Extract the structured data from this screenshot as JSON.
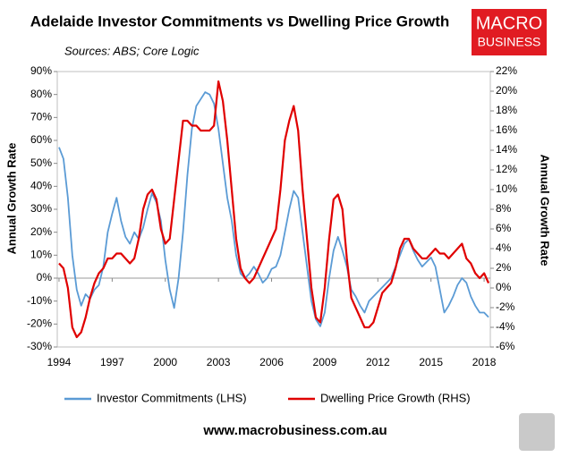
{
  "chart_data": {
    "type": "line",
    "title": "Adelaide Investor Commitments vs Dwelling Price Growth",
    "subtitle": "Sources: ABS; Core Logic",
    "y_label": "Annual Growth Rate",
    "y2_label": "Annual Growth Rate",
    "logo": [
      "MACRO",
      "BUSINESS"
    ],
    "footer": "www.macrobusiness.com.au",
    "x": [
      1994,
      1994.25,
      1994.5,
      1994.75,
      1995,
      1995.25,
      1995.5,
      1995.75,
      1996,
      1996.25,
      1996.5,
      1996.75,
      1997,
      1997.25,
      1997.5,
      1997.75,
      1998,
      1998.25,
      1998.5,
      1998.75,
      1999,
      1999.25,
      1999.5,
      1999.75,
      2000,
      2000.25,
      2000.5,
      2000.75,
      2001,
      2001.25,
      2001.5,
      2001.75,
      2002,
      2002.25,
      2002.5,
      2002.75,
      2003,
      2003.25,
      2003.5,
      2003.75,
      2004,
      2004.25,
      2004.5,
      2004.75,
      2005,
      2005.25,
      2005.5,
      2005.75,
      2006,
      2006.25,
      2006.5,
      2006.75,
      2007,
      2007.25,
      2007.5,
      2007.75,
      2008,
      2008.25,
      2008.5,
      2008.75,
      2009,
      2009.25,
      2009.5,
      2009.75,
      2010,
      2010.25,
      2010.5,
      2010.75,
      2011,
      2011.25,
      2011.5,
      2011.75,
      2012,
      2012.25,
      2012.5,
      2012.75,
      2013,
      2013.25,
      2013.5,
      2013.75,
      2014,
      2014.25,
      2014.5,
      2014.75,
      2015,
      2015.25,
      2015.5,
      2015.75,
      2016,
      2016.25,
      2016.5,
      2016.75,
      2017,
      2017.25,
      2017.5,
      2017.75,
      2018,
      2018.25
    ],
    "series": [
      {
        "name": "Investor Commitments (LHS)",
        "color": "#5b9bd5",
        "axis": "y",
        "values": [
          57,
          52,
          35,
          10,
          -5,
          -12,
          -7,
          -9,
          -5,
          -3,
          5,
          20,
          28,
          35,
          25,
          18,
          15,
          20,
          17,
          22,
          30,
          37,
          33,
          25,
          8,
          -5,
          -13,
          0,
          20,
          45,
          65,
          75,
          78,
          81,
          80,
          76,
          65,
          50,
          35,
          25,
          10,
          2,
          0,
          2,
          5,
          2,
          -2,
          0,
          4,
          5,
          10,
          20,
          30,
          38,
          35,
          20,
          5,
          -10,
          -18,
          -21,
          -15,
          0,
          12,
          18,
          12,
          5,
          -5,
          -8,
          -12,
          -15,
          -10,
          -8,
          -6,
          -4,
          -2,
          0,
          5,
          10,
          15,
          17,
          12,
          8,
          5,
          7,
          9,
          5,
          -5,
          -15,
          -12,
          -8,
          -3,
          0,
          -2,
          -8,
          -12,
          -15,
          -15,
          -17
        ]
      },
      {
        "name": "Dwelling Price Growth (RHS)",
        "color": "#e00000",
        "axis": "y2",
        "values": [
          2.5,
          2,
          0,
          -4,
          -5,
          -4.5,
          -3,
          -1,
          0.5,
          1.5,
          2,
          3,
          3,
          3.5,
          3.5,
          3,
          2.5,
          3,
          5,
          8,
          9.5,
          10,
          9,
          6,
          4.5,
          5,
          9,
          13,
          17,
          17,
          16.5,
          16.5,
          16,
          16,
          16,
          16.5,
          21,
          19,
          15,
          10,
          5,
          2,
          1,
          0.5,
          1,
          2,
          3,
          4,
          5,
          6,
          10,
          15,
          17,
          18.5,
          16,
          10,
          5,
          0,
          -3,
          -3.5,
          0,
          5,
          9,
          9.5,
          8,
          3,
          -1,
          -2,
          -3,
          -4,
          -4,
          -3.5,
          -2,
          -0.5,
          0,
          0.5,
          2,
          4,
          5,
          5,
          4,
          3.5,
          3,
          3,
          3.5,
          4,
          3.5,
          3.5,
          3,
          3.5,
          4,
          4.5,
          3,
          2.5,
          1.5,
          1,
          1.5,
          0.5
        ]
      }
    ],
    "xlim": [
      1993.9,
      2018.35
    ],
    "xticks": [
      1994,
      1997,
      2000,
      2003,
      2006,
      2009,
      2012,
      2015,
      2018
    ],
    "ylim": [
      -30,
      90
    ],
    "yticks": [
      {
        "value": -30,
        "label": "-30%"
      },
      {
        "value": -20,
        "label": "-20%"
      },
      {
        "value": -10,
        "label": "-10%"
      },
      {
        "value": 0,
        "label": "0%"
      },
      {
        "value": 10,
        "label": "10%"
      },
      {
        "value": 20,
        "label": "20%"
      },
      {
        "value": 30,
        "label": "30%"
      },
      {
        "value": 40,
        "label": "40%"
      },
      {
        "value": 50,
        "label": "50%"
      },
      {
        "value": 60,
        "label": "60%"
      },
      {
        "value": 70,
        "label": "70%"
      },
      {
        "value": 80,
        "label": "80%"
      },
      {
        "value": 90,
        "label": "90%"
      }
    ],
    "y2lim": [
      -6,
      22
    ],
    "y2ticks": [
      {
        "value": -6,
        "label": "-6%"
      },
      {
        "value": -4,
        "label": "-4%"
      },
      {
        "value": -2,
        "label": "-2%"
      },
      {
        "value": 0,
        "label": "0%"
      },
      {
        "value": 2,
        "label": "2%"
      },
      {
        "value": 4,
        "label": "4%"
      },
      {
        "value": 6,
        "label": "6%"
      },
      {
        "value": 8,
        "label": "8%"
      },
      {
        "value": 10,
        "label": "10%"
      },
      {
        "value": 12,
        "label": "12%"
      },
      {
        "value": 14,
        "label": "14%"
      },
      {
        "value": 16,
        "label": "16%"
      },
      {
        "value": 18,
        "label": "18%"
      },
      {
        "value": 20,
        "label": "20%"
      },
      {
        "value": 22,
        "label": "22%"
      }
    ]
  }
}
